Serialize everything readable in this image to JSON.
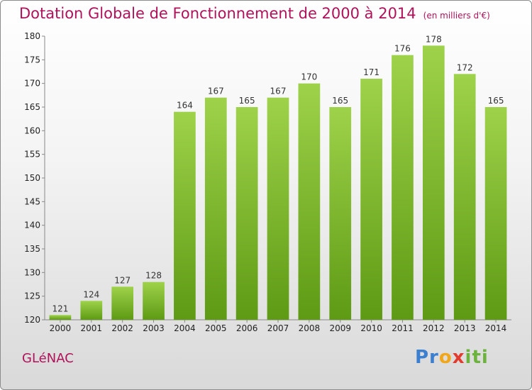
{
  "header": {
    "title": "Dotation Globale de Fonctionnement de 2000 à 2014",
    "subtitle": "(en milliers d'€)"
  },
  "footer": {
    "commune": "GLéNAC",
    "logo_parts": [
      "Pr",
      "o",
      "x",
      "iti"
    ]
  },
  "colors": {
    "accent": "#b0125a",
    "bar_light": "#9ed24a",
    "bar_dark": "#5e9a14"
  },
  "chart_data": {
    "type": "bar",
    "title": "Dotation Globale de Fonctionnement de 2000 à 2014",
    "xlabel": "",
    "ylabel": "",
    "categories": [
      "2000",
      "2001",
      "2002",
      "2003",
      "2004",
      "2005",
      "2006",
      "2007",
      "2008",
      "2009",
      "2010",
      "2011",
      "2012",
      "2013",
      "2014"
    ],
    "values": [
      121,
      124,
      127,
      128,
      164,
      167,
      165,
      167,
      170,
      165,
      171,
      176,
      178,
      172,
      165
    ],
    "ylim": [
      120,
      180
    ],
    "yticks": [
      120,
      125,
      130,
      135,
      140,
      145,
      150,
      155,
      160,
      165,
      170,
      175,
      180
    ],
    "grid": false,
    "legend": "none"
  }
}
